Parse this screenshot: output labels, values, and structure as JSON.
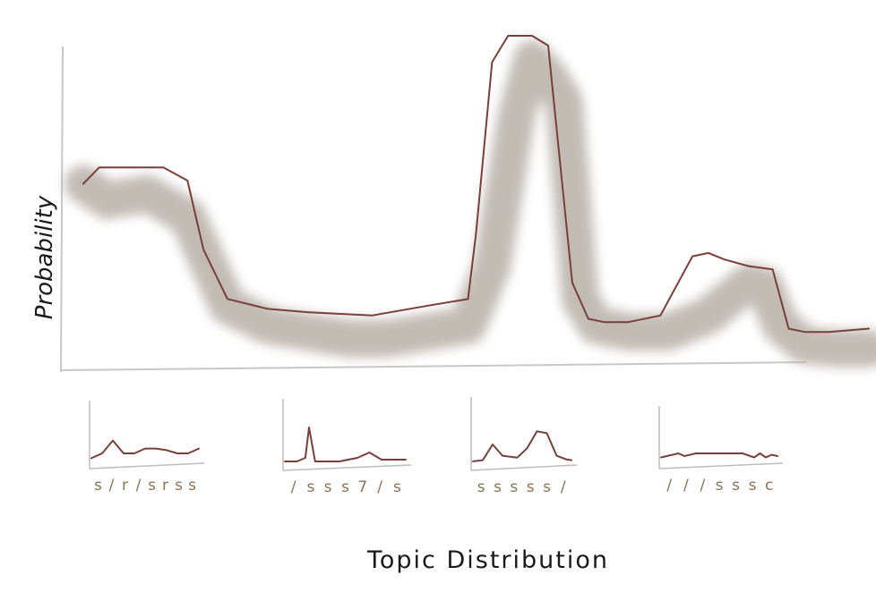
{
  "chart_data": [
    {
      "type": "line",
      "title": "",
      "xlabel": "Topic Distribution",
      "ylabel": "Probability",
      "grid": false,
      "legend": "none",
      "ylim": [
        0,
        1
      ],
      "xlim": [
        0,
        1
      ],
      "series": [
        {
          "style": "blurred-band",
          "x": [
            0.02,
            0.05,
            0.1,
            0.15,
            0.2,
            0.25,
            0.3,
            0.35,
            0.4,
            0.45,
            0.5,
            0.53,
            0.56,
            0.58,
            0.6,
            0.62,
            0.64,
            0.66,
            0.7,
            0.75,
            0.8,
            0.85,
            0.87,
            0.89,
            0.92,
            0.96,
            1.0
          ],
          "values": [
            0.55,
            0.5,
            0.52,
            0.45,
            0.18,
            0.12,
            0.1,
            0.08,
            0.08,
            0.1,
            0.12,
            0.3,
            0.75,
            0.93,
            0.88,
            0.8,
            0.2,
            0.12,
            0.1,
            0.1,
            0.15,
            0.25,
            0.24,
            0.12,
            0.06,
            0.05,
            0.05
          ]
        },
        {
          "style": "outline",
          "x": [
            0.02,
            0.04,
            0.08,
            0.12,
            0.15,
            0.17,
            0.2,
            0.25,
            0.3,
            0.38,
            0.45,
            0.5,
            0.51,
            0.53,
            0.55,
            0.56,
            0.58,
            0.6,
            0.63,
            0.65,
            0.67,
            0.7,
            0.74,
            0.78,
            0.8,
            0.82,
            0.85,
            0.88,
            0.9,
            0.92,
            0.95,
            1.0
          ],
          "values": [
            0.55,
            0.6,
            0.6,
            0.6,
            0.56,
            0.35,
            0.2,
            0.17,
            0.16,
            0.15,
            0.18,
            0.2,
            0.4,
            0.92,
            1.0,
            1.0,
            1.0,
            0.97,
            0.25,
            0.14,
            0.13,
            0.13,
            0.15,
            0.33,
            0.34,
            0.32,
            0.3,
            0.29,
            0.11,
            0.1,
            0.1,
            0.11
          ]
        }
      ]
    },
    {
      "type": "line",
      "title": "",
      "xlabel": "",
      "ylabel": "",
      "tick_labels": [
        "s",
        "/",
        "r",
        "/",
        "s",
        "r",
        "s",
        "s"
      ],
      "series": [
        {
          "x": [
            0,
            0.1,
            0.2,
            0.3,
            0.4,
            0.5,
            0.6,
            0.7,
            0.8,
            0.9,
            1.0
          ],
          "values": [
            0.1,
            0.25,
            0.65,
            0.25,
            0.25,
            0.4,
            0.4,
            0.35,
            0.25,
            0.25,
            0.4
          ]
        }
      ]
    },
    {
      "type": "line",
      "title": "",
      "xlabel": "",
      "ylabel": "",
      "tick_labels": [
        "/",
        "s",
        "s",
        "s",
        "7",
        "/",
        "s"
      ],
      "series": [
        {
          "x": [
            0,
            0.1,
            0.17,
            0.2,
            0.25,
            0.3,
            0.45,
            0.6,
            0.7,
            0.8,
            0.9,
            1.0
          ],
          "values": [
            0.05,
            0.05,
            0.15,
            1.0,
            0.05,
            0.05,
            0.05,
            0.15,
            0.3,
            0.1,
            0.1,
            0.1
          ]
        }
      ]
    },
    {
      "type": "line",
      "title": "",
      "xlabel": "",
      "ylabel": "",
      "tick_labels": [
        "s",
        "s",
        "s",
        "s",
        "s",
        "/"
      ],
      "series": [
        {
          "x": [
            0,
            0.1,
            0.2,
            0.3,
            0.45,
            0.55,
            0.65,
            0.75,
            0.85,
            0.95,
            1.0
          ],
          "values": [
            0.05,
            0.08,
            0.5,
            0.2,
            0.15,
            0.4,
            0.85,
            0.8,
            0.2,
            0.1,
            0.08
          ]
        }
      ]
    },
    {
      "type": "line",
      "title": "",
      "xlabel": "",
      "ylabel": "",
      "tick_labels": [
        "/",
        "/",
        "/",
        "s",
        "s",
        "s",
        "c"
      ],
      "series": [
        {
          "x": [
            0,
            0.1,
            0.15,
            0.2,
            0.3,
            0.5,
            0.7,
            0.8,
            0.85,
            0.9,
            0.95,
            1.0
          ],
          "values": [
            0.15,
            0.25,
            0.3,
            0.2,
            0.3,
            0.3,
            0.3,
            0.15,
            0.3,
            0.15,
            0.25,
            0.2
          ]
        }
      ]
    }
  ],
  "colors": {
    "line": "#7a3f3a",
    "band": "#b8b0a8",
    "axis": "#bdbdbd",
    "tick": "#8b7355",
    "text": "#1a1a1a"
  }
}
